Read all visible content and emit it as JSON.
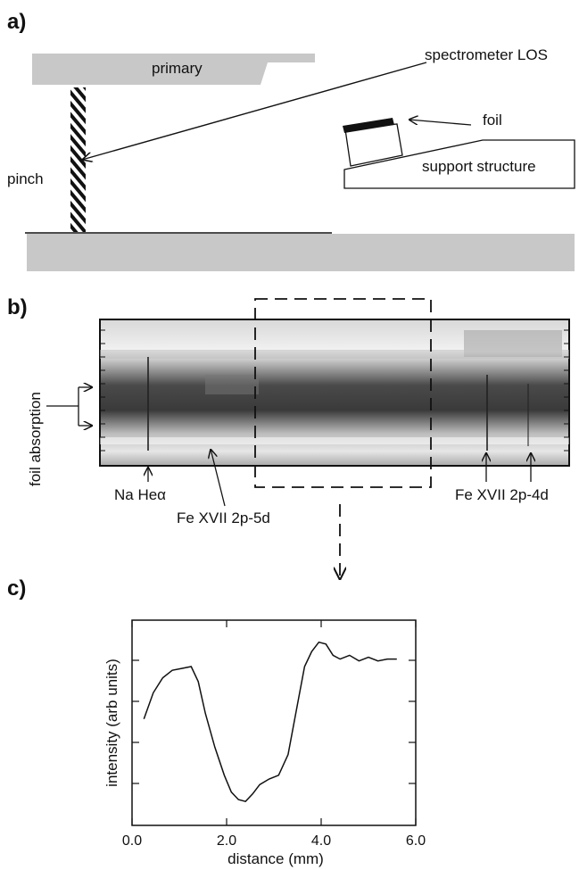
{
  "figure": {
    "panel_a": {
      "label": "a)",
      "primary_label": "primary",
      "los_label": "spectrometer LOS",
      "foil_label": "foil",
      "support_label": "support structure",
      "pinch_label": "pinch"
    },
    "panel_b": {
      "label": "b)",
      "side_label": "foil absorption",
      "line_labels": {
        "na_hea": "Na Heα",
        "fe_5d": "Fe XVII 2p-5d",
        "fe_4d": "Fe XVII 2p-4d"
      }
    },
    "panel_c": {
      "label": "c)"
    }
  },
  "chart_data": {
    "type": "line",
    "xlabel": "distance (mm)",
    "ylabel": "intensity (arb units)",
    "xlim": [
      0.0,
      6.0
    ],
    "x_ticks": [
      "0.0",
      "2.0",
      "4.0",
      "6.0"
    ],
    "grid": false,
    "series": [
      {
        "x": [
          0.25,
          0.45,
          0.65,
          0.85,
          1.05,
          1.25,
          1.4,
          1.55,
          1.75,
          1.95,
          2.1,
          2.25,
          2.4,
          2.55,
          2.7,
          2.9,
          3.1,
          3.3,
          3.5,
          3.65,
          3.8,
          3.95,
          4.1,
          4.25,
          4.4,
          4.6,
          4.8,
          5.0,
          5.2,
          5.4,
          5.6
        ],
        "values": [
          0.52,
          0.66,
          0.74,
          0.78,
          0.79,
          0.8,
          0.72,
          0.55,
          0.37,
          0.22,
          0.13,
          0.09,
          0.08,
          0.12,
          0.17,
          0.2,
          0.22,
          0.33,
          0.6,
          0.8,
          0.88,
          0.93,
          0.92,
          0.86,
          0.84,
          0.86,
          0.83,
          0.85,
          0.83,
          0.84,
          0.84
        ]
      }
    ]
  }
}
